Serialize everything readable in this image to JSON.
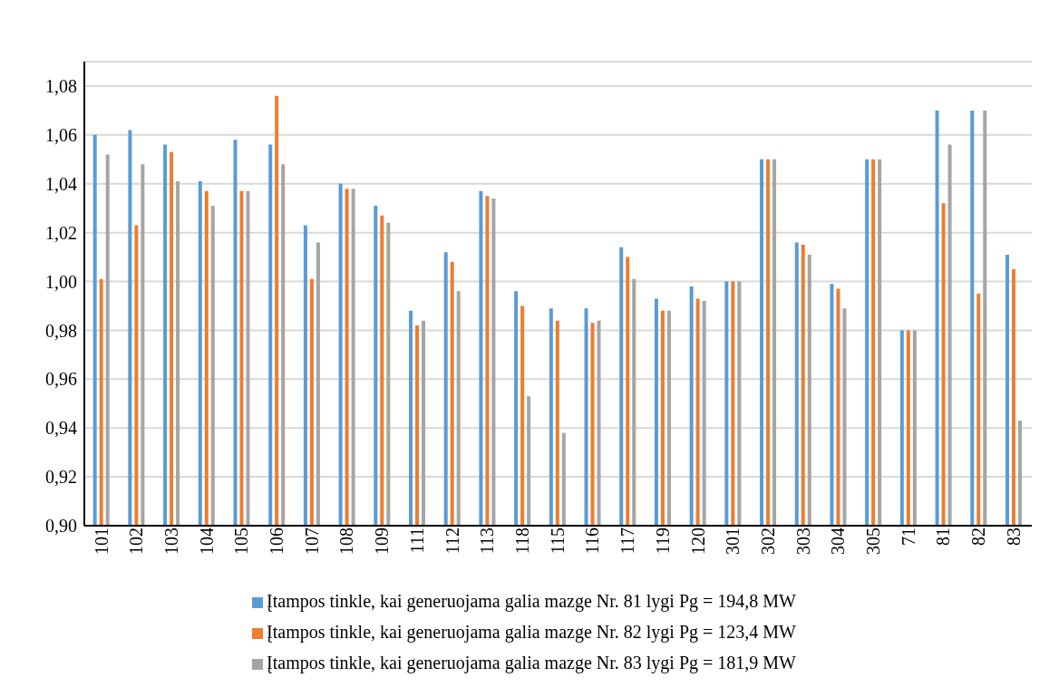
{
  "chart_data": {
    "type": "bar",
    "categories": [
      "101",
      "102",
      "103",
      "104",
      "105",
      "106",
      "107",
      "108",
      "109",
      "111",
      "112",
      "113",
      "118",
      "115",
      "116",
      "117",
      "119",
      "120",
      "301",
      "302",
      "303",
      "304",
      "305",
      "71",
      "81",
      "82",
      "83"
    ],
    "series": [
      {
        "name": "Įtampos tinkle, kai generuojama galia mazge Nr. 81 lygi Pg = 194,8 MW",
        "color": "#5b9bd5",
        "values": [
          1.06,
          1.062,
          1.056,
          1.041,
          1.058,
          1.056,
          1.023,
          1.04,
          1.031,
          0.988,
          1.012,
          1.037,
          0.996,
          0.989,
          0.989,
          1.014,
          0.993,
          0.998,
          1.0,
          1.05,
          1.016,
          0.999,
          1.05,
          0.98,
          1.07,
          1.07,
          1.011
        ]
      },
      {
        "name": "Įtampos tinkle, kai generuojama galia mazge Nr. 82 lygi Pg = 123,4 MW",
        "color": "#ed7d31",
        "values": [
          1.001,
          1.023,
          1.053,
          1.037,
          1.037,
          1.076,
          1.001,
          1.038,
          1.027,
          0.982,
          1.008,
          1.035,
          0.99,
          0.984,
          0.983,
          1.01,
          0.988,
          0.993,
          1.0,
          1.05,
          1.015,
          0.997,
          1.05,
          0.98,
          1.032,
          0.995,
          1.005
        ]
      },
      {
        "name": "Įtampos tinkle, kai generuojama galia mazge Nr. 83 lygi Pg = 181,9 MW",
        "color": "#a5a5a5",
        "values": [
          1.052,
          1.048,
          1.041,
          1.031,
          1.037,
          1.048,
          1.016,
          1.038,
          1.024,
          0.984,
          0.996,
          1.034,
          0.953,
          0.938,
          0.984,
          1.001,
          0.988,
          0.992,
          1.0,
          1.05,
          1.011,
          0.989,
          1.05,
          0.98,
          1.056,
          1.07,
          0.943
        ]
      }
    ],
    "ylim": [
      0.9,
      1.09
    ],
    "yticks": [
      {
        "value": 0.9,
        "label": "0,90"
      },
      {
        "value": 0.92,
        "label": "0,92"
      },
      {
        "value": 0.94,
        "label": "0,94"
      },
      {
        "value": 0.96,
        "label": "0,96"
      },
      {
        "value": 0.98,
        "label": "0,98"
      },
      {
        "value": 1.0,
        "label": "1,00"
      },
      {
        "value": 1.02,
        "label": "1,02"
      },
      {
        "value": 1.04,
        "label": "1,04"
      },
      {
        "value": 1.06,
        "label": "1,06"
      },
      {
        "value": 1.08,
        "label": "1,08"
      }
    ],
    "grid": "y",
    "legend": "bottom"
  }
}
